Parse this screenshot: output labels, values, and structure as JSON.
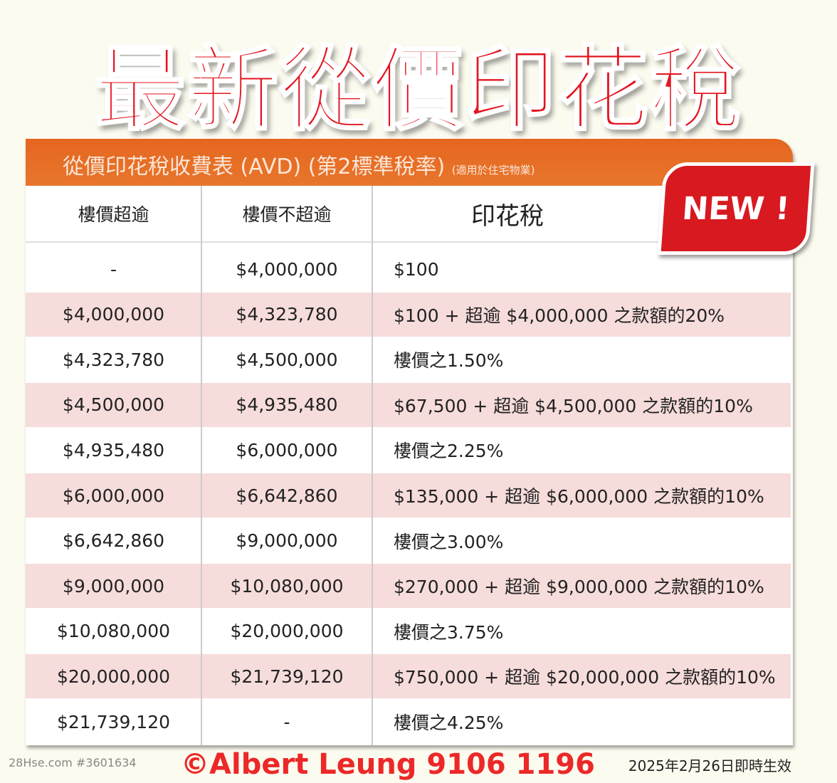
{
  "title": "最新從價印花稅",
  "table": {
    "caption": "從價印花稅收費表 (AVD) (第2標準稅率)",
    "caption_note": "(適用於住宅物業)",
    "badge": "NEW !",
    "headers": [
      "樓價超逾",
      "樓價不超逾",
      "印花稅"
    ],
    "rows": [
      [
        "-",
        "$4,000,000",
        "$100"
      ],
      [
        "$4,000,000",
        "$4,323,780",
        "$100 + 超逾 $4,000,000 之款額的20%"
      ],
      [
        "$4,323,780",
        "$4,500,000",
        "樓價之1.50%"
      ],
      [
        "$4,500,000",
        "$4,935,480",
        "$67,500 + 超逾 $4,500,000 之款額的10%"
      ],
      [
        "$4,935,480",
        "$6,000,000",
        "樓價之2.25%"
      ],
      [
        "$6,000,000",
        "$6,642,860",
        "$135,000 + 超逾 $6,000,000 之款額的10%"
      ],
      [
        "$6,642,860",
        "$9,000,000",
        "樓價之3.00%"
      ],
      [
        "$9,000,000",
        "$10,080,000",
        "$270,000 + 超逾 $9,000,000 之款額的10%"
      ],
      [
        "$10,080,000",
        "$20,000,000",
        "樓價之3.75%"
      ],
      [
        "$20,000,000",
        "$21,739,120",
        "$750,000 + 超逾 $20,000,000 之款額的10%"
      ],
      [
        "$21,739,120",
        "-",
        "樓價之4.25%"
      ]
    ]
  },
  "watermark": "©Albert Leung 9106 1196",
  "source": "28Hse.com #3601634",
  "effective_date": "2025年2月26日即時生效"
}
